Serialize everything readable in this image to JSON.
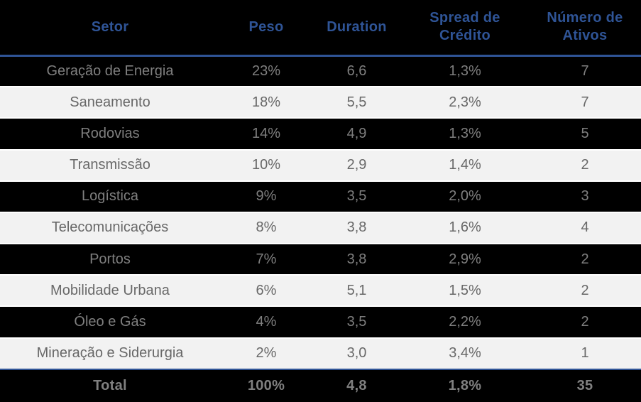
{
  "colors": {
    "header_text_blue": "#2F5496",
    "rule_line_blue": "#2F5496",
    "dark_row_bg": "#000000",
    "light_row_bg": "#F2F2F2",
    "dark_row_text": "#7F7F7F",
    "light_row_text": "#686868",
    "row_separator": "#FFFFFF"
  },
  "chart_data": {
    "type": "table",
    "columns": [
      "Setor",
      "Peso",
      "Duration",
      "Spread de Crédito",
      "Número de Ativos"
    ],
    "rows": [
      [
        "Geração de Energia",
        "23%",
        "6,6",
        "1,3%",
        "7"
      ],
      [
        "Saneamento",
        "18%",
        "5,5",
        "2,3%",
        "7"
      ],
      [
        "Rodovias",
        "14%",
        "4,9",
        "1,3%",
        "5"
      ],
      [
        "Transmissão",
        "10%",
        "2,9",
        "1,4%",
        "2"
      ],
      [
        "Logística",
        "9%",
        "3,5",
        "2,0%",
        "3"
      ],
      [
        "Telecomunicações",
        "8%",
        "3,8",
        "1,6%",
        "4"
      ],
      [
        "Portos",
        "7%",
        "3,8",
        "2,9%",
        "2"
      ],
      [
        "Mobilidade Urbana",
        "6%",
        "5,1",
        "1,5%",
        "2"
      ],
      [
        "Óleo e Gás",
        "4%",
        "3,5",
        "2,2%",
        "2"
      ],
      [
        "Mineração e Siderurgia",
        "2%",
        "3,0",
        "3,4%",
        "1"
      ]
    ],
    "total_row": [
      "Total",
      "100%",
      "4,8",
      "1,8%",
      "35"
    ],
    "layout": {
      "banded_rows": true,
      "header_position": "top",
      "value_alignment": "center"
    }
  }
}
